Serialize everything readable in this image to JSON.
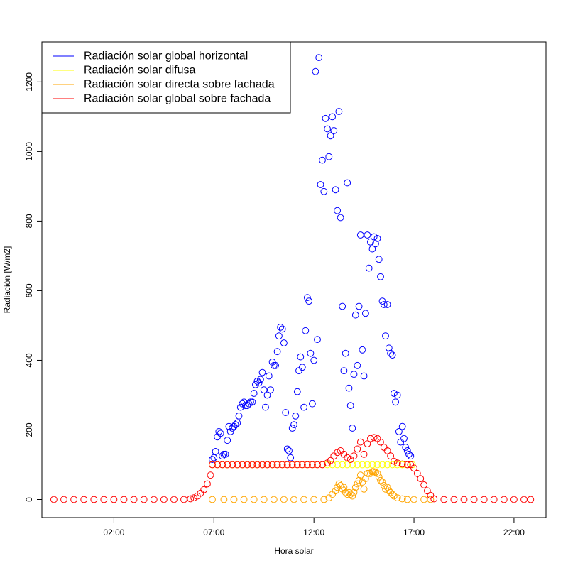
{
  "chart_data": {
    "type": "scatter",
    "title": "",
    "xlabel": "Hora solar",
    "ylabel": "Radiación [W/m2]",
    "x_unit": "hours",
    "xlim": [
      -1.6,
      23.6
    ],
    "ylim": [
      -52,
      1315
    ],
    "x_ticks": [
      {
        "value": 2,
        "label": "02:00"
      },
      {
        "value": 7,
        "label": "07:00"
      },
      {
        "value": 12,
        "label": "12:00"
      },
      {
        "value": 17,
        "label": "17:00"
      },
      {
        "value": 22,
        "label": "22:00"
      }
    ],
    "y_ticks": [
      0,
      200,
      400,
      600,
      800,
      1000,
      1200
    ],
    "legend_position": "top-left",
    "grid": false,
    "series": [
      {
        "name": "Radiación solar global horizontal",
        "color": "#0000ff",
        "points": [
          [
            6.92,
            115
          ],
          [
            7.0,
            120
          ],
          [
            7.08,
            138
          ],
          [
            7.17,
            180
          ],
          [
            7.25,
            195
          ],
          [
            7.33,
            190
          ],
          [
            7.42,
            125
          ],
          [
            7.5,
            130
          ],
          [
            7.58,
            130
          ],
          [
            7.67,
            170
          ],
          [
            7.75,
            210
          ],
          [
            7.83,
            195
          ],
          [
            7.92,
            205
          ],
          [
            8.0,
            210
          ],
          [
            8.08,
            215
          ],
          [
            8.17,
            220
          ],
          [
            8.25,
            240
          ],
          [
            8.33,
            265
          ],
          [
            8.42,
            275
          ],
          [
            8.5,
            280
          ],
          [
            8.58,
            270
          ],
          [
            8.67,
            270
          ],
          [
            8.75,
            275
          ],
          [
            8.83,
            280
          ],
          [
            8.92,
            280
          ],
          [
            9.0,
            305
          ],
          [
            9.08,
            330
          ],
          [
            9.17,
            340
          ],
          [
            9.25,
            335
          ],
          [
            9.33,
            345
          ],
          [
            9.42,
            365
          ],
          [
            9.5,
            315
          ],
          [
            9.58,
            265
          ],
          [
            9.67,
            300
          ],
          [
            9.75,
            355
          ],
          [
            9.83,
            315
          ],
          [
            9.92,
            395
          ],
          [
            10.0,
            385
          ],
          [
            10.08,
            385
          ],
          [
            10.17,
            425
          ],
          [
            10.25,
            470
          ],
          [
            10.33,
            495
          ],
          [
            10.42,
            490
          ],
          [
            10.5,
            450
          ],
          [
            10.58,
            250
          ],
          [
            10.67,
            145
          ],
          [
            10.75,
            140
          ],
          [
            10.83,
            120
          ],
          [
            10.92,
            205
          ],
          [
            11.0,
            215
          ],
          [
            11.08,
            240
          ],
          [
            11.17,
            310
          ],
          [
            11.25,
            370
          ],
          [
            11.33,
            410
          ],
          [
            11.42,
            380
          ],
          [
            11.5,
            265
          ],
          [
            11.58,
            485
          ],
          [
            11.67,
            580
          ],
          [
            11.75,
            570
          ],
          [
            11.83,
            420
          ],
          [
            11.92,
            275
          ],
          [
            12.0,
            400
          ],
          [
            12.08,
            1230
          ],
          [
            12.17,
            460
          ],
          [
            12.25,
            1270
          ],
          [
            12.33,
            905
          ],
          [
            12.42,
            975
          ],
          [
            12.5,
            885
          ],
          [
            12.58,
            1095
          ],
          [
            12.67,
            1065
          ],
          [
            12.75,
            985
          ],
          [
            12.83,
            1045
          ],
          [
            12.92,
            1100
          ],
          [
            13.0,
            1060
          ],
          [
            13.08,
            890
          ],
          [
            13.17,
            830
          ],
          [
            13.25,
            1115
          ],
          [
            13.33,
            810
          ],
          [
            13.42,
            555
          ],
          [
            13.5,
            370
          ],
          [
            13.58,
            420
          ],
          [
            13.67,
            910
          ],
          [
            13.75,
            320
          ],
          [
            13.83,
            270
          ],
          [
            13.92,
            205
          ],
          [
            14.0,
            360
          ],
          [
            14.08,
            530
          ],
          [
            14.17,
            385
          ],
          [
            14.25,
            555
          ],
          [
            14.33,
            760
          ],
          [
            14.42,
            430
          ],
          [
            14.5,
            355
          ],
          [
            14.58,
            535
          ],
          [
            14.67,
            760
          ],
          [
            14.75,
            665
          ],
          [
            14.83,
            740
          ],
          [
            14.92,
            720
          ],
          [
            15.0,
            755
          ],
          [
            15.08,
            735
          ],
          [
            15.17,
            750
          ],
          [
            15.25,
            690
          ],
          [
            15.33,
            640
          ],
          [
            15.42,
            570
          ],
          [
            15.5,
            560
          ],
          [
            15.58,
            470
          ],
          [
            15.67,
            560
          ],
          [
            15.75,
            435
          ],
          [
            15.83,
            420
          ],
          [
            15.92,
            415
          ],
          [
            16.0,
            305
          ],
          [
            16.08,
            280
          ],
          [
            16.17,
            300
          ],
          [
            16.25,
            195
          ],
          [
            16.33,
            165
          ],
          [
            16.42,
            210
          ],
          [
            16.5,
            175
          ],
          [
            16.58,
            150
          ],
          [
            16.67,
            140
          ],
          [
            16.75,
            130
          ],
          [
            16.83,
            125
          ]
        ]
      },
      {
        "name": "Radiación solar difusa",
        "color": "#ffff00",
        "points": [
          [
            6.92,
            100
          ],
          [
            7.17,
            100
          ],
          [
            7.42,
            100
          ],
          [
            7.67,
            100
          ],
          [
            7.92,
            100
          ],
          [
            8.17,
            100
          ],
          [
            8.42,
            100
          ],
          [
            8.67,
            100
          ],
          [
            8.92,
            100
          ],
          [
            9.17,
            100
          ],
          [
            9.42,
            100
          ],
          [
            9.67,
            100
          ],
          [
            9.92,
            100
          ],
          [
            10.17,
            100
          ],
          [
            10.42,
            100
          ],
          [
            10.67,
            100
          ],
          [
            10.92,
            100
          ],
          [
            11.17,
            100
          ],
          [
            11.42,
            100
          ],
          [
            11.67,
            100
          ],
          [
            11.92,
            100
          ],
          [
            12.17,
            100
          ],
          [
            12.42,
            100
          ],
          [
            12.67,
            100
          ],
          [
            12.92,
            100
          ],
          [
            13.17,
            100
          ],
          [
            13.42,
            100
          ],
          [
            13.67,
            100
          ],
          [
            13.92,
            100
          ],
          [
            14.17,
            100
          ],
          [
            14.42,
            100
          ],
          [
            14.67,
            100
          ],
          [
            14.92,
            100
          ],
          [
            15.17,
            100
          ],
          [
            15.42,
            100
          ],
          [
            15.67,
            100
          ],
          [
            15.92,
            100
          ],
          [
            16.17,
            100
          ],
          [
            16.42,
            100
          ],
          [
            16.67,
            100
          ],
          [
            16.92,
            100
          ]
        ]
      },
      {
        "name": "Radiación solar directa sobre fachada",
        "color": "#ffa500",
        "points": [
          [
            6.92,
            0
          ],
          [
            7.5,
            0
          ],
          [
            8.0,
            0
          ],
          [
            8.5,
            0
          ],
          [
            9.0,
            0
          ],
          [
            9.5,
            0
          ],
          [
            10.0,
            0
          ],
          [
            10.5,
            0
          ],
          [
            11.0,
            0
          ],
          [
            11.5,
            0
          ],
          [
            12.0,
            0
          ],
          [
            12.5,
            0
          ],
          [
            12.75,
            5
          ],
          [
            12.92,
            15
          ],
          [
            13.08,
            25
          ],
          [
            13.17,
            35
          ],
          [
            13.25,
            45
          ],
          [
            13.33,
            40
          ],
          [
            13.42,
            30
          ],
          [
            13.5,
            35
          ],
          [
            13.58,
            20
          ],
          [
            13.67,
            15
          ],
          [
            13.75,
            20
          ],
          [
            13.83,
            15
          ],
          [
            13.92,
            10
          ],
          [
            14.0,
            20
          ],
          [
            14.08,
            35
          ],
          [
            14.17,
            45
          ],
          [
            14.25,
            55
          ],
          [
            14.33,
            70
          ],
          [
            14.42,
            50
          ],
          [
            14.5,
            30
          ],
          [
            14.58,
            60
          ],
          [
            14.67,
            75
          ],
          [
            14.75,
            75
          ],
          [
            14.83,
            75
          ],
          [
            14.92,
            80
          ],
          [
            15.0,
            80
          ],
          [
            15.08,
            78
          ],
          [
            15.17,
            75
          ],
          [
            15.25,
            65
          ],
          [
            15.33,
            55
          ],
          [
            15.42,
            50
          ],
          [
            15.5,
            40
          ],
          [
            15.58,
            30
          ],
          [
            15.67,
            35
          ],
          [
            15.75,
            25
          ],
          [
            15.83,
            20
          ],
          [
            15.92,
            15
          ],
          [
            16.0,
            10
          ],
          [
            16.17,
            5
          ],
          [
            16.42,
            2
          ],
          [
            16.67,
            0
          ],
          [
            17.0,
            0
          ],
          [
            17.5,
            0
          ],
          [
            17.83,
            0
          ]
        ]
      },
      {
        "name": "Radiación solar global sobre fachada",
        "color": "#ff0000",
        "points": [
          [
            -1.0,
            0
          ],
          [
            -0.5,
            0
          ],
          [
            0.0,
            0
          ],
          [
            0.5,
            0
          ],
          [
            1.0,
            0
          ],
          [
            1.5,
            0
          ],
          [
            2.0,
            0
          ],
          [
            2.5,
            0
          ],
          [
            3.0,
            0
          ],
          [
            3.5,
            0
          ],
          [
            4.0,
            0
          ],
          [
            4.5,
            0
          ],
          [
            5.0,
            0
          ],
          [
            5.5,
            0
          ],
          [
            5.83,
            2
          ],
          [
            6.0,
            5
          ],
          [
            6.17,
            10
          ],
          [
            6.33,
            18
          ],
          [
            6.5,
            28
          ],
          [
            6.67,
            45
          ],
          [
            6.83,
            70
          ],
          [
            6.92,
            100
          ],
          [
            7.17,
            100
          ],
          [
            7.42,
            100
          ],
          [
            7.67,
            100
          ],
          [
            7.92,
            100
          ],
          [
            8.17,
            100
          ],
          [
            8.42,
            100
          ],
          [
            8.67,
            100
          ],
          [
            8.92,
            100
          ],
          [
            9.17,
            100
          ],
          [
            9.42,
            100
          ],
          [
            9.67,
            100
          ],
          [
            9.92,
            100
          ],
          [
            10.17,
            100
          ],
          [
            10.42,
            100
          ],
          [
            10.67,
            100
          ],
          [
            10.92,
            100
          ],
          [
            11.17,
            100
          ],
          [
            11.42,
            100
          ],
          [
            11.67,
            100
          ],
          [
            11.92,
            100
          ],
          [
            12.17,
            100
          ],
          [
            12.42,
            100
          ],
          [
            12.67,
            105
          ],
          [
            12.83,
            112
          ],
          [
            13.0,
            125
          ],
          [
            13.17,
            135
          ],
          [
            13.33,
            140
          ],
          [
            13.5,
            130
          ],
          [
            13.67,
            120
          ],
          [
            13.83,
            115
          ],
          [
            14.0,
            125
          ],
          [
            14.17,
            145
          ],
          [
            14.33,
            165
          ],
          [
            14.5,
            130
          ],
          [
            14.67,
            160
          ],
          [
            14.83,
            175
          ],
          [
            15.0,
            178
          ],
          [
            15.17,
            175
          ],
          [
            15.33,
            165
          ],
          [
            15.5,
            150
          ],
          [
            15.67,
            140
          ],
          [
            15.83,
            125
          ],
          [
            16.0,
            110
          ],
          [
            16.17,
            105
          ],
          [
            16.42,
            102
          ],
          [
            16.67,
            100
          ],
          [
            16.83,
            100
          ],
          [
            17.0,
            90
          ],
          [
            17.17,
            75
          ],
          [
            17.33,
            60
          ],
          [
            17.5,
            42
          ],
          [
            17.67,
            25
          ],
          [
            17.83,
            12
          ],
          [
            18.0,
            2
          ],
          [
            18.5,
            0
          ],
          [
            19.0,
            0
          ],
          [
            19.5,
            0
          ],
          [
            20.0,
            0
          ],
          [
            20.5,
            0
          ],
          [
            21.0,
            0
          ],
          [
            21.5,
            0
          ],
          [
            22.0,
            0
          ],
          [
            22.5,
            0
          ],
          [
            22.83,
            0
          ]
        ]
      }
    ]
  }
}
